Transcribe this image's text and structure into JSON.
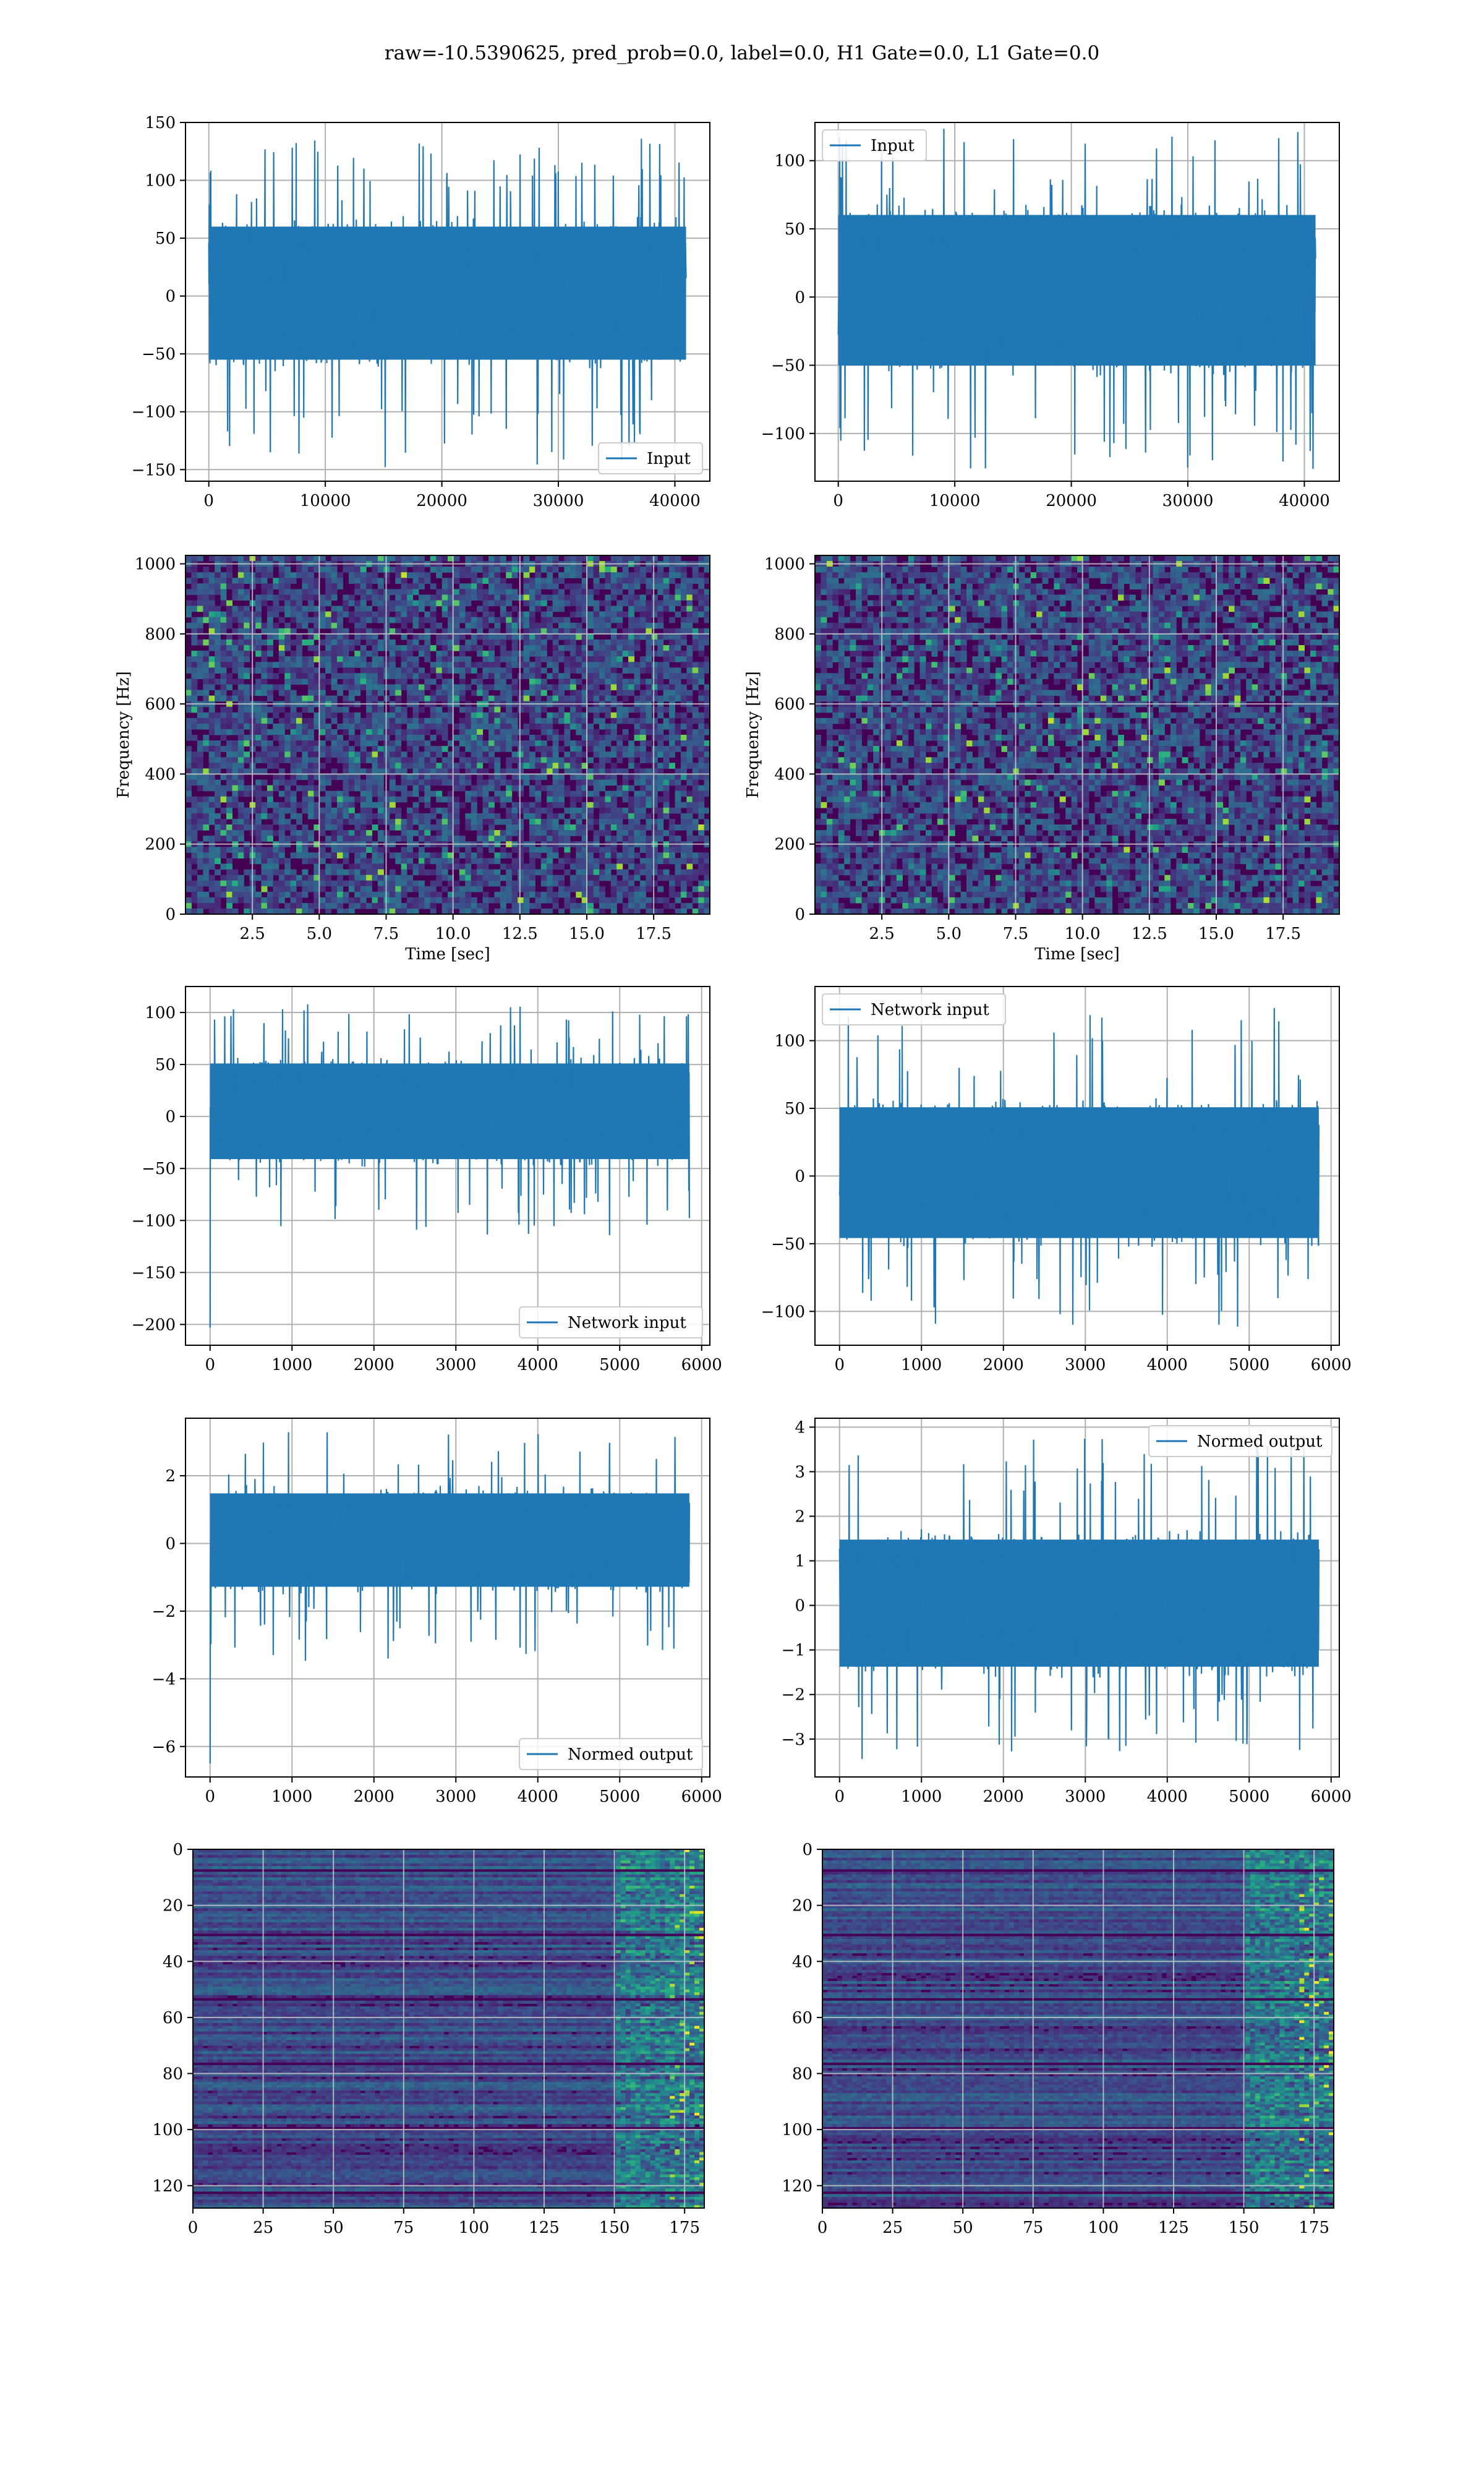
{
  "figure": {
    "title": "raw=-10.5390625, pred_prob=0.0, label=0.0, H1 Gate=0.0, L1 Gate=0.0",
    "colors": {
      "series": "#1f77b4",
      "grid": "#b0b0b0",
      "viridis": [
        "#440154",
        "#472d7b",
        "#3b528b",
        "#2c728e",
        "#21918c",
        "#28ae80",
        "#5ec962",
        "#addc30",
        "#fde725"
      ]
    }
  },
  "chart_data": [
    {
      "id": "p1",
      "type": "line",
      "title": "",
      "xlabel": "",
      "ylabel": "",
      "xlim": [
        -2000,
        43000
      ],
      "ylim": [
        -160,
        150
      ],
      "xticks": [
        0,
        10000,
        20000,
        30000,
        40000
      ],
      "xticklabels": [
        "0",
        "10000",
        "20000",
        "30000",
        "40000"
      ],
      "yticks": [
        -150,
        -100,
        -50,
        0,
        50,
        100,
        150
      ],
      "yticklabels": [
        "−150",
        "−100",
        "−50",
        "0",
        "50",
        "100",
        "150"
      ],
      "legend": {
        "label": "Input",
        "loc": "lower right"
      },
      "series": [
        {
          "name": "Input",
          "x_range": [
            0,
            40960
          ],
          "band": [
            -60,
            65
          ],
          "peak_max": 138,
          "peak_min": -148
        }
      ]
    },
    {
      "id": "p2",
      "type": "line",
      "title": "",
      "xlabel": "",
      "ylabel": "",
      "xlim": [
        -2000,
        43000
      ],
      "ylim": [
        -135,
        128
      ],
      "xticks": [
        0,
        10000,
        20000,
        30000,
        40000
      ],
      "xticklabels": [
        "0",
        "10000",
        "20000",
        "30000",
        "40000"
      ],
      "yticks": [
        -100,
        -50,
        0,
        50,
        100
      ],
      "yticklabels": [
        "−100",
        "−50",
        "0",
        "50",
        "100"
      ],
      "legend": {
        "label": "Input",
        "loc": "upper left"
      },
      "series": [
        {
          "name": "Input",
          "x_range": [
            0,
            40960
          ],
          "band": [
            -55,
            65
          ],
          "peak_max": 125,
          "peak_min": -127
        }
      ]
    },
    {
      "id": "p3",
      "type": "heatmap",
      "title": "",
      "xlabel": "Time [sec]",
      "ylabel": "Frequency [Hz]",
      "xlim": [
        0,
        19.6
      ],
      "ylim": [
        0,
        1024
      ],
      "xticks": [
        2.5,
        5.0,
        7.5,
        10.0,
        12.5,
        15.0,
        17.5
      ],
      "xticklabels": [
        "2.5",
        "5.0",
        "7.5",
        "10.0",
        "12.5",
        "15.0",
        "17.5"
      ],
      "yticks": [
        0,
        200,
        400,
        600,
        800,
        1000
      ],
      "yticklabels": [
        "0",
        "200",
        "400",
        "600",
        "800",
        "1000"
      ],
      "colormap": "viridis",
      "noise_level": 0.25
    },
    {
      "id": "p4",
      "type": "heatmap",
      "title": "",
      "xlabel": "Time [sec]",
      "ylabel": "Frequency [Hz]",
      "xlim": [
        0,
        19.6
      ],
      "ylim": [
        0,
        1024
      ],
      "xticks": [
        2.5,
        5.0,
        7.5,
        10.0,
        12.5,
        15.0,
        17.5
      ],
      "xticklabels": [
        "2.5",
        "5.0",
        "7.5",
        "10.0",
        "12.5",
        "15.0",
        "17.5"
      ],
      "yticks": [
        0,
        200,
        400,
        600,
        800,
        1000
      ],
      "yticklabels": [
        "0",
        "200",
        "400",
        "600",
        "800",
        "1000"
      ],
      "colormap": "viridis",
      "noise_level": 0.25
    },
    {
      "id": "p5",
      "type": "line",
      "title": "",
      "xlabel": "",
      "ylabel": "",
      "xlim": [
        -300,
        6100
      ],
      "ylim": [
        -220,
        125
      ],
      "xticks": [
        0,
        1000,
        2000,
        3000,
        4000,
        5000,
        6000
      ],
      "xticklabels": [
        "0",
        "1000",
        "2000",
        "3000",
        "4000",
        "5000",
        "6000"
      ],
      "yticks": [
        -200,
        -150,
        -100,
        -50,
        0,
        50,
        100
      ],
      "yticklabels": [
        "−200",
        "−150",
        "−100",
        "−50",
        "0",
        "50",
        "100"
      ],
      "legend": {
        "label": "Network input",
        "loc": "lower right"
      },
      "series": [
        {
          "name": "Network input",
          "x_range": [
            0,
            5850
          ],
          "band": [
            -45,
            55
          ],
          "peak_max": 108,
          "peak_min": -115,
          "start_spike": -203
        }
      ]
    },
    {
      "id": "p6",
      "type": "line",
      "title": "",
      "xlabel": "",
      "ylabel": "",
      "xlim": [
        -300,
        6100
      ],
      "ylim": [
        -125,
        140
      ],
      "xticks": [
        0,
        1000,
        2000,
        3000,
        4000,
        5000,
        6000
      ],
      "xticklabels": [
        "0",
        "1000",
        "2000",
        "3000",
        "4000",
        "5000",
        "6000"
      ],
      "yticks": [
        -100,
        -50,
        0,
        50,
        100
      ],
      "yticklabels": [
        "−100",
        "−50",
        "0",
        "50",
        "100"
      ],
      "legend": {
        "label": "Network input",
        "loc": "upper left"
      },
      "series": [
        {
          "name": "Network input",
          "x_range": [
            0,
            5850
          ],
          "band": [
            -50,
            55
          ],
          "peak_max": 125,
          "peak_min": -112
        }
      ]
    },
    {
      "id": "p7",
      "type": "line",
      "title": "",
      "xlabel": "",
      "ylabel": "",
      "xlim": [
        -300,
        6100
      ],
      "ylim": [
        -6.9,
        3.7
      ],
      "xticks": [
        0,
        1000,
        2000,
        3000,
        4000,
        5000,
        6000
      ],
      "xticklabels": [
        "0",
        "1000",
        "2000",
        "3000",
        "4000",
        "5000",
        "6000"
      ],
      "yticks": [
        -6,
        -4,
        -2,
        0,
        2
      ],
      "yticklabels": [
        "−6",
        "−4",
        "−2",
        "0",
        "2"
      ],
      "legend": {
        "label": "Normed output",
        "loc": "lower right"
      },
      "series": [
        {
          "name": "Normed output",
          "x_range": [
            0,
            5850
          ],
          "band": [
            -1.4,
            1.6
          ],
          "peak_max": 3.3,
          "peak_min": -3.5,
          "start_spike": -6.5
        }
      ]
    },
    {
      "id": "p8",
      "type": "line",
      "title": "",
      "xlabel": "",
      "ylabel": "",
      "xlim": [
        -300,
        6100
      ],
      "ylim": [
        -3.85,
        4.2
      ],
      "xticks": [
        0,
        1000,
        2000,
        3000,
        4000,
        5000,
        6000
      ],
      "xticklabels": [
        "0",
        "1000",
        "2000",
        "3000",
        "4000",
        "5000",
        "6000"
      ],
      "yticks": [
        -3,
        -2,
        -1,
        0,
        1,
        2,
        3,
        4
      ],
      "yticklabels": [
        "−3",
        "−2",
        "−1",
        "0",
        "1",
        "2",
        "3",
        "4"
      ],
      "legend": {
        "label": "Normed output",
        "loc": "upper right"
      },
      "series": [
        {
          "name": "Normed output",
          "x_range": [
            0,
            5850
          ],
          "band": [
            -1.5,
            1.6
          ],
          "peak_max": 3.85,
          "peak_min": -3.45
        }
      ]
    },
    {
      "id": "p9",
      "type": "heatmap",
      "title": "",
      "xlabel": "",
      "ylabel": "",
      "xlim": [
        0,
        182
      ],
      "ylim": [
        128,
        0
      ],
      "xticks": [
        0,
        25,
        50,
        75,
        100,
        125,
        150,
        175
      ],
      "xticklabels": [
        "0",
        "25",
        "50",
        "75",
        "100",
        "125",
        "150",
        "175"
      ],
      "yticks": [
        0,
        20,
        40,
        60,
        80,
        100,
        120
      ],
      "yticklabels": [
        "0",
        "20",
        "40",
        "60",
        "80",
        "100",
        "120"
      ],
      "colormap": "viridis",
      "bright_columns_from": 150
    },
    {
      "id": "p10",
      "type": "heatmap",
      "title": "",
      "xlabel": "",
      "ylabel": "",
      "xlim": [
        0,
        182
      ],
      "ylim": [
        128,
        0
      ],
      "xticks": [
        0,
        25,
        50,
        75,
        100,
        125,
        150,
        175
      ],
      "xticklabels": [
        "0",
        "25",
        "50",
        "75",
        "100",
        "125",
        "150",
        "175"
      ],
      "yticks": [
        0,
        20,
        40,
        60,
        80,
        100,
        120
      ],
      "yticklabels": [
        "0",
        "20",
        "40",
        "60",
        "80",
        "100",
        "120"
      ],
      "colormap": "viridis",
      "bright_columns_from": 150
    }
  ]
}
